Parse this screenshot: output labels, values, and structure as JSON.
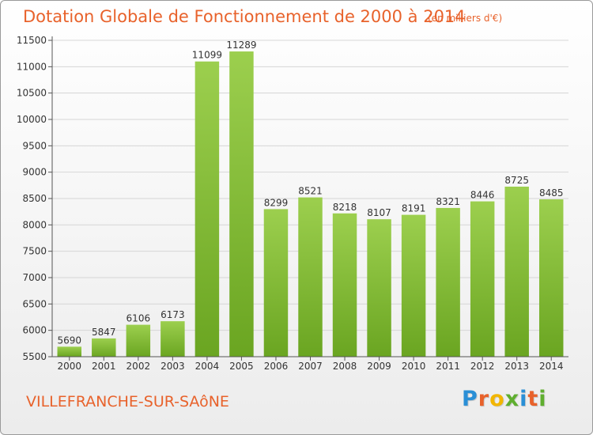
{
  "header": {
    "title": "Dotation Globale de Fonctionnement de 2000 à 2014",
    "subtitle": "(en milliers d'€)"
  },
  "footer": {
    "commune": "VILLEFRANCHE-SUR-SAôNE",
    "logo_text": "Proxiti",
    "logo_letters": [
      {
        "ch": "P",
        "color": "#2a8fd6"
      },
      {
        "ch": "r",
        "color": "#e8622b"
      },
      {
        "ch": "o",
        "color": "#f2b600"
      },
      {
        "ch": "x",
        "color": "#5fae2f"
      },
      {
        "ch": "i",
        "color": "#2a8fd6"
      },
      {
        "ch": "t",
        "color": "#e8622b"
      },
      {
        "ch": "i",
        "color": "#5fae2f"
      }
    ]
  },
  "chart_data": {
    "type": "bar",
    "title": "Dotation Globale de Fonctionnement de 2000 à 2014",
    "subtitle": "(en milliers d'€)",
    "categories": [
      "2000",
      "2001",
      "2002",
      "2003",
      "2004",
      "2005",
      "2006",
      "2007",
      "2008",
      "2009",
      "2010",
      "2011",
      "2012",
      "2013",
      "2014"
    ],
    "values": [
      5690,
      5847,
      6106,
      6173,
      11099,
      11289,
      8299,
      8521,
      8218,
      8107,
      8191,
      8321,
      8446,
      8725,
      8485
    ],
    "ylim": [
      5500,
      11500
    ],
    "yticks": [
      5500,
      6000,
      6500,
      7000,
      7500,
      8000,
      8500,
      9000,
      9500,
      10000,
      10500,
      11000,
      11500
    ],
    "grid": true,
    "legend": "none",
    "bar_color_top": "#9ccf4e",
    "bar_color_bottom": "#6aa521"
  }
}
